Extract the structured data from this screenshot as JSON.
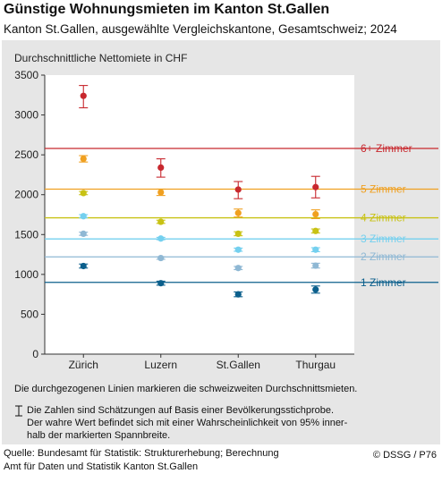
{
  "header": {
    "title": "Günstige Wohnungsmieten im Kanton St.Gallen",
    "subtitle": "Kanton St.Gallen, ausgewählte Vergleichskantone, Gesamtschweiz; 2024"
  },
  "notes": {
    "lines_note": "Die durchgezogenen Linien markieren die schweizweiten Durchschnittsmieten.",
    "errorbar_note_lines": [
      "Die Zahlen sind Schätzungen auf Basis einer Bevölkerungsstichprobe.",
      "Der wahre Wert befindet sich mit einer Wahrscheinlichkeit von 95% inner-",
      "halb der markierten Spannbreite."
    ]
  },
  "footer": {
    "source_lines": [
      "Quelle: Bundesamt für Statistik: Strukturerhebung; Berechnung",
      "Amt für Daten und Statistik Kanton St.Gallen"
    ],
    "copyright": "© DSSG / P76"
  },
  "chart_data": {
    "type": "scatter",
    "ylabel": "Durchschnittliche Nettomiete in CHF",
    "ylim": [
      0,
      3500
    ],
    "yticks": [
      0,
      500,
      1000,
      1500,
      2000,
      2500,
      3000,
      3500
    ],
    "categories": [
      "Zürich",
      "Luzern",
      "St.Gallen",
      "Thurgau"
    ],
    "grid": false,
    "series": [
      {
        "name": "1 Zimmer",
        "color": "#0b5f8c",
        "swiss_average": 900,
        "values": [
          1105,
          890,
          750,
          810
        ],
        "ci_low": [
          1080,
          865,
          720,
          765
        ],
        "ci_high": [
          1130,
          915,
          780,
          855
        ]
      },
      {
        "name": "2 Zimmer",
        "color": "#8fb8d4",
        "swiss_average": 1220,
        "values": [
          1510,
          1205,
          1080,
          1110
        ],
        "ci_low": [
          1490,
          1190,
          1060,
          1080
        ],
        "ci_high": [
          1530,
          1220,
          1100,
          1140
        ]
      },
      {
        "name": "3 Zimmer",
        "color": "#74d0ef",
        "swiss_average": 1445,
        "values": [
          1730,
          1450,
          1310,
          1310
        ],
        "ci_low": [
          1710,
          1435,
          1290,
          1285
        ],
        "ci_high": [
          1750,
          1465,
          1330,
          1335
        ]
      },
      {
        "name": "4 Zimmer",
        "color": "#c8c214",
        "swiss_average": 1710,
        "values": [
          2020,
          1660,
          1510,
          1545
        ],
        "ci_low": [
          2000,
          1640,
          1485,
          1520
        ],
        "ci_high": [
          2040,
          1680,
          1535,
          1570
        ]
      },
      {
        "name": "5 Zimmer",
        "color": "#f0a020",
        "swiss_average": 2070,
        "values": [
          2450,
          2030,
          1770,
          1755
        ],
        "ci_low": [
          2410,
          1990,
          1720,
          1700
        ],
        "ci_high": [
          2490,
          2070,
          1820,
          1810
        ]
      },
      {
        "name": "6+ Zimmer",
        "color": "#c8282e",
        "swiss_average": 2580,
        "values": [
          3240,
          2340,
          2065,
          2095
        ],
        "ci_low": [
          3090,
          2220,
          1950,
          1960
        ],
        "ci_high": [
          3370,
          2450,
          2165,
          2230
        ]
      }
    ]
  }
}
